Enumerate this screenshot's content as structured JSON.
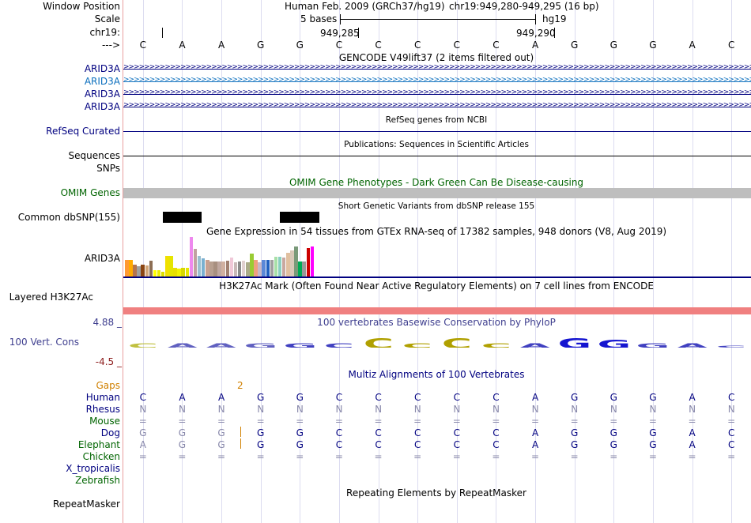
{
  "position": {
    "label": "Window Position",
    "assembly": "Human Feb. 2009 (GRCh37/hg19)",
    "location": "chr19:949,280-949,295 (16 bp)"
  },
  "scale": {
    "label": "Scale",
    "bases_text": "5 bases",
    "assembly_short": "hg19"
  },
  "chrom": {
    "label": "chr19:",
    "tick1": "949,285",
    "tick2": "949,290"
  },
  "sequence": {
    "label": "--->",
    "bases": [
      "C",
      "A",
      "A",
      "G",
      "G",
      "C",
      "C",
      "C",
      "C",
      "C",
      "A",
      "G",
      "G",
      "G",
      "A",
      "C"
    ]
  },
  "gencode": {
    "title": "GENCODE V49lift37 (2 items filtered out)",
    "items": [
      "ARID3A",
      "ARID3A",
      "ARID3A",
      "ARID3A"
    ]
  },
  "refseq": {
    "label": "RefSeq Curated",
    "title": "RefSeq genes from NCBI"
  },
  "publications": {
    "label": "Sequences",
    "title": "Publications: Sequences in Scientific Articles"
  },
  "snps_label": "SNPs",
  "omim": {
    "label": "OMIM Genes",
    "title": "OMIM Gene Phenotypes - Dark Green Can Be Disease-causing"
  },
  "dbsnp": {
    "label": "Common dbSNP(155)",
    "title": "Short Genetic Variants from dbSNP release 155"
  },
  "gtex": {
    "title": "Gene Expression in 54 tissues from GTEx RNA-seq of 17382 samples, 948 donors (V8, Aug 2019)",
    "gene_label": "ARID3A"
  },
  "h3k27ac": {
    "label": "Layered H3K27Ac",
    "title": "H3K27Ac Mark (Often Found Near Active Regulatory Elements) on 7 cell lines from ENCODE"
  },
  "phylop": {
    "label": "100 Vert. Cons",
    "title": "100 vertebrates Basewise Conservation by PhyloP",
    "max": "4.88 _",
    "min": "-4.5 _"
  },
  "multiz": {
    "title": "Multiz Alignments of 100 Vertebrates",
    "gaps_label": "Gaps",
    "gap_count": "2",
    "species": [
      {
        "name": "Human",
        "row": [
          "C",
          "A",
          "A",
          "G",
          "G",
          "C",
          "C",
          "C",
          "C",
          "C",
          "A",
          "G",
          "G",
          "G",
          "A",
          "C"
        ]
      },
      {
        "name": "Rhesus",
        "row": [
          "N",
          "N",
          "N",
          "N",
          "N",
          "N",
          "N",
          "N",
          "N",
          "N",
          "N",
          "N",
          "N",
          "N",
          "N",
          "N"
        ]
      },
      {
        "name": "Mouse",
        "row": [
          "=",
          "=",
          "=",
          "=",
          "=",
          "=",
          "=",
          "=",
          "=",
          "=",
          "=",
          "=",
          "=",
          "=",
          "=",
          "="
        ]
      },
      {
        "name": "Dog",
        "row": [
          "G",
          "G",
          "G",
          "G",
          "G",
          "C",
          "C",
          "C",
          "C",
          "C",
          "A",
          "G",
          "G",
          "G",
          "A",
          "C"
        ]
      },
      {
        "name": "Elephant",
        "row": [
          "A",
          "G",
          "G",
          "G",
          "G",
          "C",
          "C",
          "C",
          "C",
          "C",
          "A",
          "G",
          "G",
          "G",
          "A",
          "C"
        ]
      },
      {
        "name": "Chicken",
        "row": [
          "=",
          "=",
          "=",
          "=",
          "=",
          "=",
          "=",
          "=",
          "=",
          "=",
          "=",
          "=",
          "=",
          "=",
          "=",
          "="
        ]
      },
      {
        "name": "X_tropicalis",
        "row": [
          "",
          "",
          "",
          "",
          "",
          "",
          "",
          "",
          "",
          "",
          "",
          "",
          "",
          "",
          "",
          ""
        ]
      },
      {
        "name": "Zebrafish",
        "row": [
          "",
          "",
          "",
          "",
          "",
          "",
          "",
          "",
          "",
          "",
          "",
          "",
          "",
          "",
          "",
          ""
        ]
      }
    ]
  },
  "repeatmasker": {
    "label": "RepeatMasker",
    "title": "Repeating Elements by RepeatMasker"
  },
  "colors": {
    "navy": "#000080",
    "blue_link": "#0a6ebd",
    "dark_green": "#006400",
    "gaps_orange": "#d08000",
    "omim_bar": "#bebebe",
    "h3k27ac_bar": "#f08080",
    "phylop_title": "#3f3f8f",
    "phylop_min": "#8b1a1a"
  },
  "gtex_bars": [
    {
      "color": "#ff9933",
      "value": 0.42
    },
    {
      "color": "#ffaa00",
      "value": 0.42
    },
    {
      "color": "#b5744e",
      "value": 0.3
    },
    {
      "color": "#a0a0a0",
      "value": 0.26
    },
    {
      "color": "#8b4513",
      "value": 0.3
    },
    {
      "color": "#d2a679",
      "value": 0.28
    },
    {
      "color": "#8c6e54",
      "value": 0.4
    },
    {
      "color": "#ffff00",
      "value": 0.16
    },
    {
      "color": "#eeee00",
      "value": 0.16
    },
    {
      "color": "#dddd00",
      "value": 0.12
    },
    {
      "color": "#f0e000",
      "value": 0.52
    },
    {
      "color": "#e5e500",
      "value": 0.52
    },
    {
      "color": "#e8e000",
      "value": 0.22
    },
    {
      "color": "#f2f200",
      "value": 0.2
    },
    {
      "color": "#d8d800",
      "value": 0.22
    },
    {
      "color": "#e6e600",
      "value": 0.22
    },
    {
      "color": "#ee88ee",
      "value": 1.0
    },
    {
      "color": "#c0a0a0",
      "value": 0.7
    },
    {
      "color": "#9ac0d0",
      "value": 0.52
    },
    {
      "color": "#7ab0d0",
      "value": 0.46
    },
    {
      "color": "#c8a090",
      "value": 0.42
    },
    {
      "color": "#b8a090",
      "value": 0.38
    },
    {
      "color": "#a89080",
      "value": 0.38
    },
    {
      "color": "#c0a8a0",
      "value": 0.38
    },
    {
      "color": "#d0b0a0",
      "value": 0.38
    },
    {
      "color": "#a08070",
      "value": 0.4
    },
    {
      "color": "#f0c8d8",
      "value": 0.48
    },
    {
      "color": "#c8b8b8",
      "value": 0.36
    },
    {
      "color": "#8a8a8a",
      "value": 0.38
    },
    {
      "color": "#e0d0d0",
      "value": 0.4
    },
    {
      "color": "#aaaa88",
      "value": 0.36
    },
    {
      "color": "#99cc33",
      "value": 0.58
    },
    {
      "color": "#f0a080",
      "value": 0.42
    },
    {
      "color": "#c8b8c8",
      "value": 0.36
    },
    {
      "color": "#5a88d8",
      "value": 0.42
    },
    {
      "color": "#2060c0",
      "value": 0.42
    },
    {
      "color": "#a0a0a0",
      "value": 0.42
    },
    {
      "color": "#a8e0a8",
      "value": 0.5
    },
    {
      "color": "#8ad0c0",
      "value": 0.5
    },
    {
      "color": "#c8a8a0",
      "value": 0.48
    },
    {
      "color": "#e0c0a0",
      "value": 0.6
    },
    {
      "color": "#d8c8b8",
      "value": 0.66
    },
    {
      "color": "#7a9a7a",
      "value": 0.76
    },
    {
      "color": "#00aa55",
      "value": 0.38
    },
    {
      "color": "#999999",
      "value": 0.38
    },
    {
      "color": "#cc0000",
      "value": 0.72
    },
    {
      "color": "#ff00ff",
      "value": 0.76
    }
  ],
  "phylop_letters": [
    {
      "base": "C",
      "score": 0.05,
      "color": "#c0c040"
    },
    {
      "base": "A",
      "score": 0.05,
      "color": "#6060c0"
    },
    {
      "base": "A",
      "score": 0.05,
      "color": "#6060c0"
    },
    {
      "base": "G",
      "score": 0.05,
      "color": "#6060c0"
    },
    {
      "base": "G",
      "score": 0.05,
      "color": "#4040c0"
    },
    {
      "base": "C",
      "score": 0.05,
      "color": "#4040c0"
    },
    {
      "base": "C",
      "score": 0.12,
      "color": "#b0a000"
    },
    {
      "base": "C",
      "score": 0.05,
      "color": "#b0a000"
    },
    {
      "base": "C",
      "score": 0.12,
      "color": "#b0a000"
    },
    {
      "base": "C",
      "score": 0.05,
      "color": "#b0a000"
    },
    {
      "base": "A",
      "score": 0.05,
      "color": "#4040c0"
    },
    {
      "base": "G",
      "score": 0.12,
      "color": "#1515d0"
    },
    {
      "base": "G",
      "score": 0.1,
      "color": "#1515d0"
    },
    {
      "base": "G",
      "score": 0.05,
      "color": "#4040c0"
    },
    {
      "base": "A",
      "score": 0.05,
      "color": "#4040c0"
    },
    {
      "base": "C",
      "score": 0.0,
      "color": "#4040c0"
    }
  ]
}
